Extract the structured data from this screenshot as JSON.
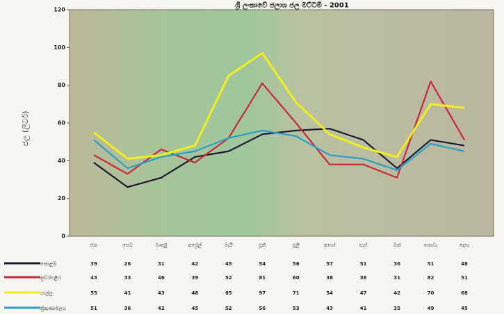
{
  "chart_data": {
    "type": "line",
    "title": "ශ්‍රී ලංකාවේ ජලාශ ජල මට්ටම් - 2001",
    "ylabel": "ජල (ලීටර්)",
    "xlabel": "",
    "ylim": [
      0,
      120
    ],
    "yticks": [
      0,
      20,
      40,
      60,
      80,
      100,
      120
    ],
    "grid": false,
    "legend": "bottom-left table",
    "categories": [
      "ජන",
      "පෙබ",
      "මාර්තු",
      "අප්‍රේල්",
      "මැයි",
      "ජූනි",
      "ජූලි",
      "අගෝ",
      "සැප්",
      "ඔක්",
      "නොවැ",
      "දෙසැ"
    ],
    "series": [
      {
        "name": "කොළඹ",
        "color": "#1c1a2e",
        "values": [
          39,
          26,
          31,
          42,
          45,
          54,
          56,
          57,
          51,
          36,
          51,
          48
        ]
      },
      {
        "name": "නුවරඑළිය",
        "color": "#c8283a",
        "values": [
          43,
          33,
          46,
          39,
          52,
          81,
          60,
          38,
          38,
          31,
          82,
          51
        ]
      },
      {
        "name": "ගාල්ල",
        "color": "#f2ef1c",
        "values": [
          55,
          41,
          43,
          48,
          85,
          97,
          71,
          54,
          47,
          42,
          70,
          68
        ]
      },
      {
        "name": "ත්‍රිකුණාමලය",
        "color": "#2a9fc6",
        "values": [
          51,
          36,
          42,
          45,
          52,
          56,
          53,
          43,
          41,
          35,
          49,
          45
        ]
      }
    ]
  }
}
